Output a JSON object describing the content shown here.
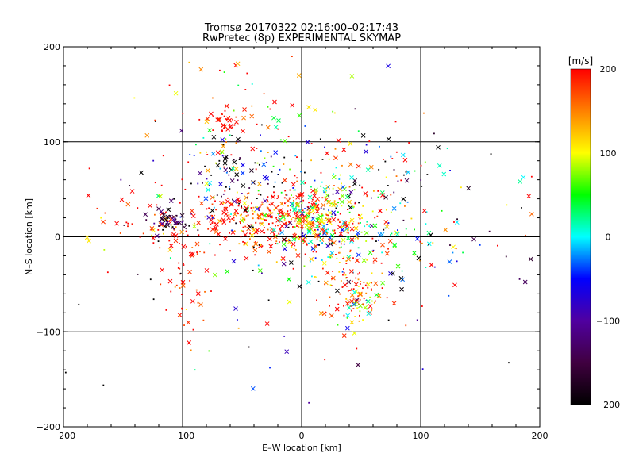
{
  "chart_data": {
    "type": "scatter",
    "title": "Tromsø 20170322 02:16:00–02:17:43",
    "subtitle": "RwPretec (8p) EXPERIMENTAL SKYMAP",
    "xlabel": "E–W location [km]",
    "ylabel": "N–S location [km]",
    "xlim": [
      -200,
      200
    ],
    "ylim": [
      -200,
      200
    ],
    "xticks": [
      -200,
      -100,
      0,
      100,
      200
    ],
    "yticks": [
      -200,
      -100,
      0,
      100,
      200
    ],
    "grid_lines_x": [
      -100,
      0,
      100
    ],
    "grid_lines_y": [
      -100,
      0,
      100
    ],
    "markers": [
      "x",
      "dot"
    ],
    "colorbar": {
      "label": "[m/s]",
      "range": [
        -200,
        200
      ],
      "ticks": [
        200,
        100,
        0,
        -100,
        -200
      ],
      "colormap": [
        "#000000",
        "#400040",
        "#5000a0",
        "#0000ff",
        "#00ffff",
        "#00ff00",
        "#ffff00",
        "#ff8000",
        "#ff0000"
      ]
    },
    "clusters": [
      {
        "cx": -70,
        "cy": 18,
        "sx": 45,
        "sy": 18,
        "n": 170,
        "v": 190,
        "vs": 40
      },
      {
        "cx": -20,
        "cy": 20,
        "sx": 25,
        "sy": 15,
        "n": 200,
        "v": 180,
        "vs": 60
      },
      {
        "cx": 15,
        "cy": 15,
        "sx": 20,
        "sy": 20,
        "n": 220,
        "v": 80,
        "vs": 100
      },
      {
        "cx": -60,
        "cy": 60,
        "sx": 30,
        "sy": 25,
        "n": 120,
        "v": -100,
        "vs": 150
      },
      {
        "cx": 40,
        "cy": 60,
        "sx": 40,
        "sy": 25,
        "n": 100,
        "v": 0,
        "vs": 180
      },
      {
        "cx": -112,
        "cy": 16,
        "sx": 8,
        "sy": 5,
        "n": 45,
        "v": -160,
        "vs": 35
      },
      {
        "cx": 60,
        "cy": 0,
        "sx": 40,
        "sy": 20,
        "n": 120,
        "v": 50,
        "vs": 120
      },
      {
        "cx": -65,
        "cy": 122,
        "sx": 8,
        "sy": 6,
        "n": 35,
        "v": 200,
        "vs": 10
      },
      {
        "cx": 45,
        "cy": -50,
        "sx": 15,
        "sy": 20,
        "n": 90,
        "v": 180,
        "vs": 50
      },
      {
        "cx": 45,
        "cy": -75,
        "sx": 8,
        "sy": 10,
        "n": 30,
        "v": 80,
        "vs": 80
      },
      {
        "cx": -95,
        "cy": -50,
        "sx": 10,
        "sy": 25,
        "n": 45,
        "v": 190,
        "vs": 30
      },
      {
        "cx": -40,
        "cy": 120,
        "sx": 40,
        "sy": 30,
        "n": 60,
        "v": 180,
        "vs": 80
      },
      {
        "cx": 0,
        "cy": 0,
        "sx": 110,
        "sy": 80,
        "n": 180,
        "v": 0,
        "vs": 200
      }
    ]
  }
}
